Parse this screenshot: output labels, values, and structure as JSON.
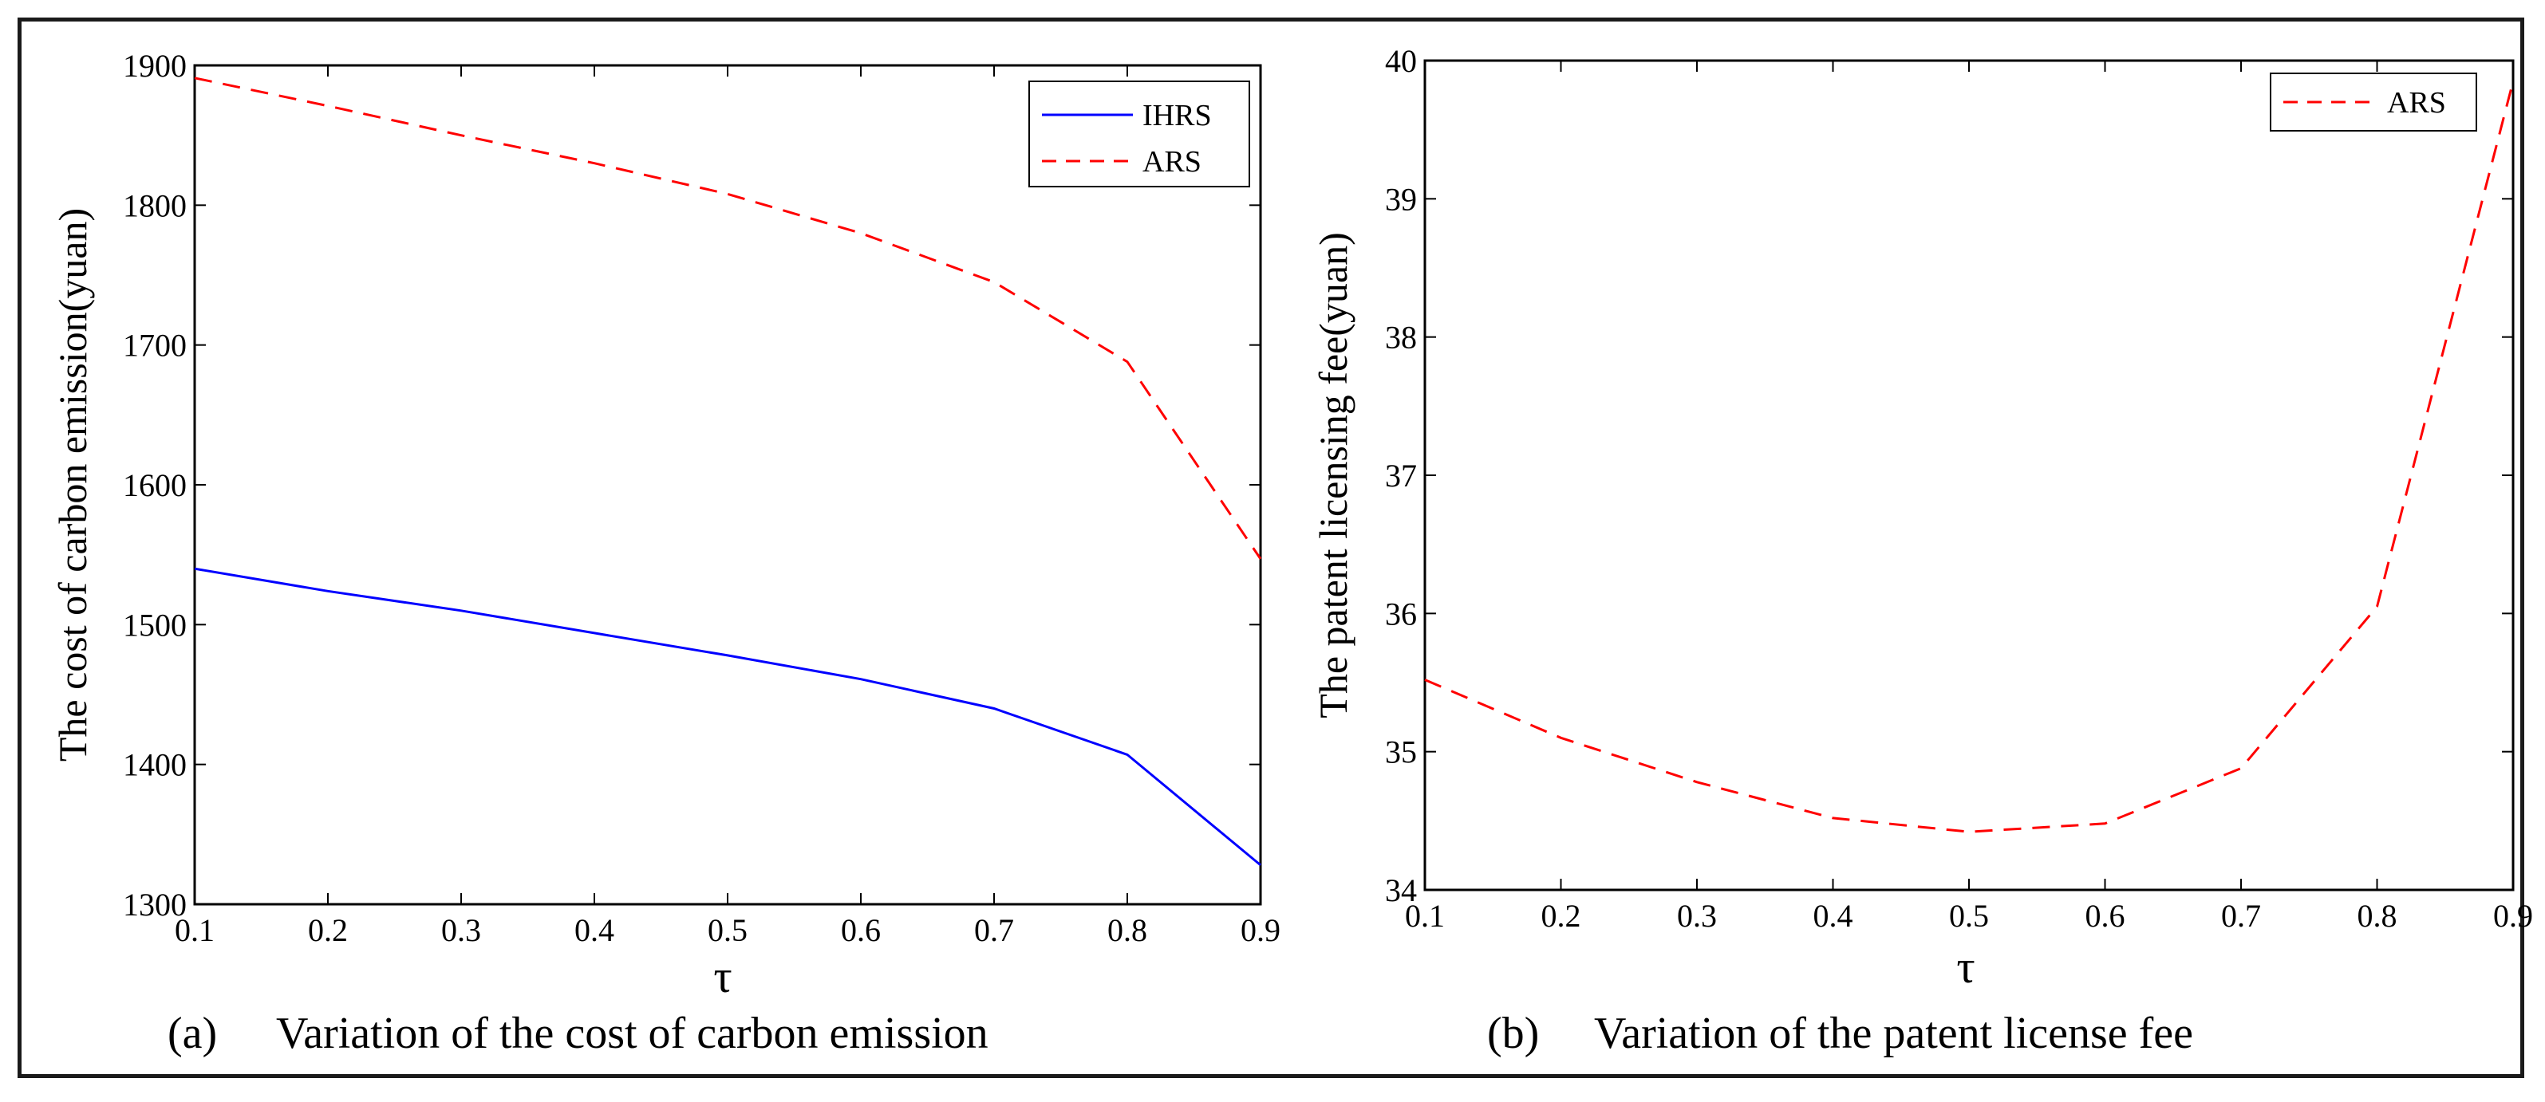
{
  "chart_data": [
    {
      "type": "line",
      "panel": "a",
      "caption_label": "(a)",
      "caption_text": "Variation of the cost of carbon emission",
      "xlabel": "τ",
      "ylabel": "The cost of carbon emission(yuan)",
      "xlim": [
        0.1,
        0.9
      ],
      "ylim": [
        1300,
        1900
      ],
      "xticks": [
        "0.1",
        "0.2",
        "0.3",
        "0.4",
        "0.5",
        "0.6",
        "0.7",
        "0.8",
        "0.9"
      ],
      "yticks": [
        "1300",
        "1400",
        "1500",
        "1600",
        "1700",
        "1800",
        "1900"
      ],
      "x": [
        0.1,
        0.2,
        0.3,
        0.4,
        0.5,
        0.6,
        0.7,
        0.8,
        0.9
      ],
      "series": [
        {
          "name": "IHRS",
          "color": "#0000ff",
          "style": "solid",
          "values": [
            1540,
            1524,
            1510,
            1494,
            1478,
            1461,
            1440,
            1407,
            1328
          ]
        },
        {
          "name": "ARS",
          "color": "#ff0000",
          "style": "dashed",
          "values": [
            1891,
            1871,
            1850,
            1830,
            1808,
            1780,
            1745,
            1688,
            1547
          ]
        }
      ],
      "legend": "top-right"
    },
    {
      "type": "line",
      "panel": "b",
      "caption_label": "(b)",
      "caption_text": "Variation of the patent license fee",
      "xlabel": "τ",
      "ylabel": "The patent licensing fee(yuan)",
      "xlim": [
        0.1,
        0.9
      ],
      "ylim": [
        34,
        40
      ],
      "xticks": [
        "0.1",
        "0.2",
        "0.3",
        "0.4",
        "0.5",
        "0.6",
        "0.7",
        "0.8",
        "0.9"
      ],
      "yticks": [
        "34",
        "35",
        "36",
        "37",
        "38",
        "39",
        "40"
      ],
      "x": [
        0.1,
        0.2,
        0.3,
        0.4,
        0.5,
        0.6,
        0.7,
        0.8,
        0.9
      ],
      "series": [
        {
          "name": "ARS",
          "color": "#ff0000",
          "style": "dashed",
          "values": [
            35.52,
            35.1,
            34.78,
            34.52,
            34.42,
            34.48,
            34.88,
            36.05,
            39.85
          ]
        }
      ],
      "legend": "top-right"
    }
  ]
}
